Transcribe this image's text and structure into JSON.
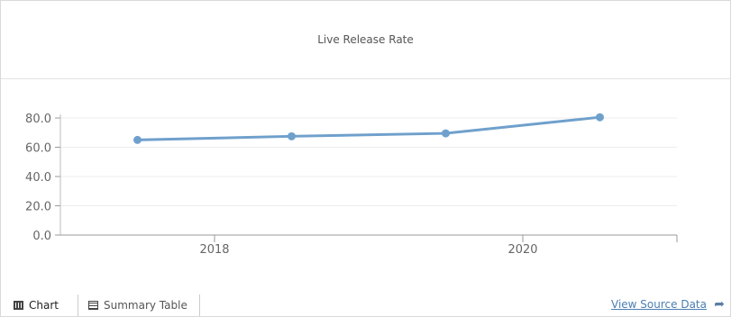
{
  "chart_data": {
    "type": "line",
    "title": "Live Release Rate",
    "xlabel": "",
    "ylabel": "",
    "x_ticks": [
      "2018",
      "2020"
    ],
    "x_tick_positions": [
      2018,
      2020
    ],
    "xlim": [
      2017.0,
      2021.0
    ],
    "ylim": [
      0,
      80
    ],
    "y_ticks": [
      "0.0",
      "20.0",
      "40.0",
      "60.0",
      "80.0"
    ],
    "y_tick_values": [
      0,
      20,
      40,
      60,
      80
    ],
    "grid": true,
    "legend": "none",
    "series": [
      {
        "color": "#6fa0cc",
        "x": [
          2017.5,
          2018.5,
          2019.5,
          2020.5
        ],
        "values": [
          65,
          67.5,
          69.5,
          80.5
        ]
      }
    ]
  },
  "footer": {
    "tab_chart": "Chart",
    "tab_table": "Summary Table",
    "source_link": "View Source Data"
  },
  "icons": {
    "chart_tab": "chart-icon",
    "table_tab": "table-icon",
    "source_arrow": "share-arrow-icon"
  }
}
